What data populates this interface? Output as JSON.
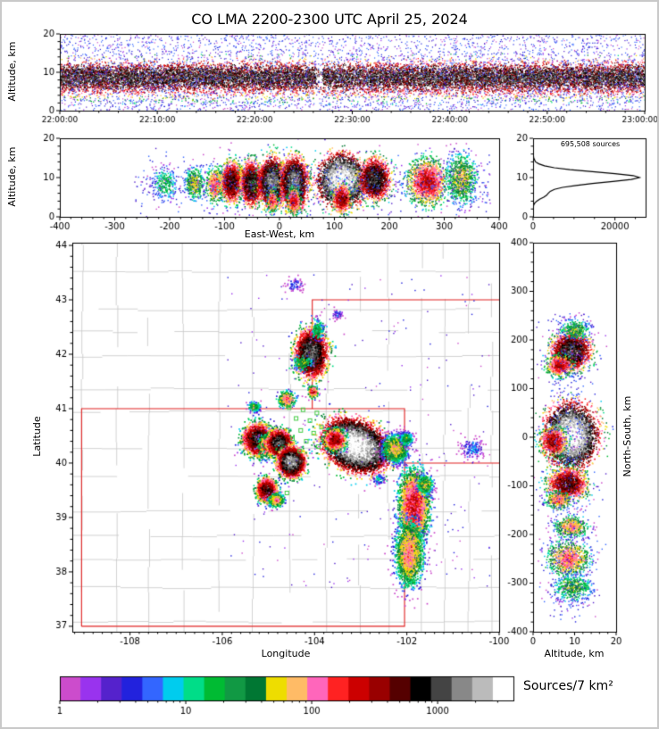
{
  "title": "CO LMA 2200-2300 UTC April 25, 2024",
  "labels": {
    "alt_axis": "Altitude, km",
    "ew_axis": "East-West, km",
    "ns_axis": "North-South, km",
    "lat_axis": "Latitude",
    "lon_axis": "Longitude",
    "colorbar": "Sources/7 km²",
    "sources_annotation": "695,508 sources"
  },
  "chart_data": {
    "type": "scatter",
    "description": "Lightning Mapping Array source density figure: time-height panel, east-west cross section, altitude histogram, plan view map, north-south cross section, log density colorbar.",
    "colormap": {
      "label": "Sources/7 km²",
      "log_max": 3.602,
      "colors": [
        "#cc4ccc",
        "#9933ee",
        "#5522cc",
        "#2222dd",
        "#3366ff",
        "#00ccee",
        "#00dd88",
        "#00bb33",
        "#119944",
        "#007733",
        "#eedd00",
        "#ffbb66",
        "#ff66bb",
        "#ff2222",
        "#cc0000",
        "#990000",
        "#550000",
        "#000000",
        "#444444",
        "#888888",
        "#bbbbbb",
        "#ffffff"
      ],
      "ticks": [
        {
          "label": "1",
          "value": 1
        },
        {
          "label": "10",
          "value": 10
        },
        {
          "label": "100",
          "value": 100
        },
        {
          "label": "1000",
          "value": 1000
        }
      ]
    },
    "panels": {
      "time_height": {
        "xlim_seconds": [
          0,
          3600
        ],
        "xticks_seconds": [
          0,
          600,
          1200,
          1800,
          2400,
          3000,
          3600
        ],
        "xtick_labels": [
          "22:00:00",
          "22:10:00",
          "22:20:00",
          "22:30:00",
          "22:40:00",
          "22:50:00",
          "23:00:00"
        ],
        "ylim": [
          0,
          20
        ],
        "yticks": [
          0,
          10,
          20
        ],
        "band": {
          "n": 16000,
          "peak": 1100,
          "color_mean": 8.8,
          "color_sigma": 2.2,
          "components": [
            {
              "weight": 0.75,
              "mean": 9.0,
              "sigma": 1.7
            },
            {
              "weight": 0.25,
              "mean": 7.2,
              "sigma": 2.6
            }
          ],
          "gap_seconds": [
            1570,
            1615
          ],
          "gap_drop": 0.8
        },
        "noise": {
          "n": 4200,
          "dmax": 6
        }
      },
      "ew_altitude": {
        "cluster_fields": "cx=east-west km, cy=altitude km",
        "xlim": [
          -400,
          400
        ],
        "xticks": [
          -400,
          -300,
          -200,
          -100,
          0,
          100,
          200,
          300,
          400
        ],
        "ylim": [
          0,
          20
        ],
        "yticks": [
          0,
          10,
          20
        ],
        "clusters": [
          {
            "cx": -210,
            "cy": 8.5,
            "sx": 12,
            "sy": 2.2,
            "peak": 25,
            "n": 260
          },
          {
            "cx": -155,
            "cy": 8.6,
            "sx": 9,
            "sy": 2.0,
            "peak": 70,
            "n": 380
          },
          {
            "cx": -118,
            "cy": 8.2,
            "sx": 8,
            "sy": 2.2,
            "peak": 180,
            "n": 520
          },
          {
            "cx": -88,
            "cy": 9.0,
            "sx": 9,
            "sy": 2.4,
            "peak": 900,
            "n": 1400
          },
          {
            "cx": -52,
            "cy": 8.6,
            "sx": 9,
            "sy": 2.6,
            "peak": 1300,
            "n": 1600
          },
          {
            "cx": -14,
            "cy": 9.0,
            "sx": 11,
            "sy": 2.8,
            "peak": 2400,
            "n": 2400
          },
          {
            "cx": 26,
            "cy": 8.6,
            "sx": 11,
            "sy": 3.0,
            "peak": 2400,
            "n": 2400
          },
          {
            "cx": 112,
            "cy": 9.4,
            "sx": 19,
            "sy": 2.8,
            "peak": 6500,
            "n": 3800
          },
          {
            "cx": 172,
            "cy": 9.8,
            "sx": 13,
            "sy": 2.4,
            "peak": 1500,
            "n": 1700
          },
          {
            "cx": 268,
            "cy": 9.0,
            "sx": 17,
            "sy": 2.8,
            "peak": 320,
            "n": 1500
          },
          {
            "cx": 330,
            "cy": 9.8,
            "sx": 14,
            "sy": 3.2,
            "peak": 70,
            "n": 800
          },
          {
            "cx": 25,
            "cy": 4.2,
            "sx": 6,
            "sy": 1.6,
            "peak": 300,
            "n": 420
          },
          {
            "cx": 112,
            "cy": 4.8,
            "sx": 8,
            "sy": 1.8,
            "peak": 500,
            "n": 520
          },
          {
            "cx": -14,
            "cy": 4.4,
            "sx": 5,
            "sy": 1.5,
            "peak": 200,
            "n": 280
          }
        ],
        "noise": {
          "n": 700,
          "u0": -265,
          "u1": 385,
          "g_mean": 8.5,
          "g_sigma": 3.5,
          "dmax": 6
        }
      },
      "alt_histogram": {
        "annotation": "695,508 sources",
        "xlim": [
          0,
          27500
        ],
        "xticks": [
          0,
          20000
        ],
        "xtick_labels": [
          "0",
          "20000"
        ],
        "xminors": [
          5000,
          10000,
          15000,
          25000
        ],
        "ylim": [
          0,
          20
        ],
        "yticks": [
          0,
          10,
          20
        ],
        "profile_alt_km": [
          0,
          2.5,
          3,
          3.5,
          4,
          4.5,
          5,
          5.5,
          6,
          6.5,
          7,
          7.5,
          8,
          8.5,
          9,
          9.5,
          10,
          10.5,
          11,
          11.5,
          12,
          12.5,
          13,
          13.5,
          14,
          15,
          16,
          17,
          20
        ],
        "profile_counts": [
          0,
          0,
          150,
          400,
          900,
          1600,
          2600,
          3300,
          3700,
          4200,
          5200,
          7200,
          10500,
          14500,
          19500,
          24000,
          26000,
          24500,
          20000,
          14500,
          9000,
          5200,
          2800,
          1400,
          600,
          150,
          30,
          0,
          0
        ]
      },
      "plan": {
        "cluster_fields": "cx=longitude deg, cy=latitude deg",
        "xlim": [
          -109.25,
          -100.0
        ],
        "xticks": [
          -108,
          -106,
          -104,
          -102,
          -100
        ],
        "ylim": [
          36.9,
          44.05
        ],
        "yticks": [
          37,
          38,
          39,
          40,
          41,
          42,
          43,
          44
        ],
        "state_border_color": "#e02020",
        "county_line_color": "#c8c8c8",
        "station_color": "#44cc44",
        "state_lines": [
          [
            [
              -109.05,
              37.0
            ],
            [
              -109.05,
              41.0
            ],
            [
              -102.05,
              41.0
            ],
            [
              -102.05,
              37.0
            ],
            [
              -109.05,
              37.0
            ]
          ],
          [
            [
              -104.05,
              41.0
            ],
            [
              -104.05,
              43.0
            ],
            [
              -100.0,
              43.0
            ]
          ],
          [
            [
              -102.05,
              40.0
            ],
            [
              -100.0,
              40.0
            ]
          ]
        ],
        "stations": [
          [
            -104.55,
            41.02
          ],
          [
            -104.25,
            40.98
          ],
          [
            -103.95,
            40.92
          ],
          [
            -104.4,
            40.82
          ],
          [
            -104.1,
            40.78
          ],
          [
            -103.85,
            40.66
          ],
          [
            -104.3,
            40.6
          ],
          [
            -104.02,
            40.55
          ],
          [
            -104.48,
            40.45
          ],
          [
            -104.18,
            40.4
          ],
          [
            -103.92,
            40.3
          ],
          [
            -104.32,
            40.22
          ],
          [
            -104.6,
            39.45
          ]
        ],
        "clusters": [
          {
            "cx": -104.08,
            "cy": 42.02,
            "sx": 0.16,
            "sy": 0.2,
            "peak": 1800,
            "n": 2600
          },
          {
            "cx": -103.95,
            "cy": 42.45,
            "sx": 0.07,
            "sy": 0.1,
            "peak": 30,
            "n": 160
          },
          {
            "cx": -104.28,
            "cy": 41.85,
            "sx": 0.1,
            "sy": 0.07,
            "peak": 50,
            "n": 180
          },
          {
            "cx": -104.05,
            "cy": 41.32,
            "sx": 0.05,
            "sy": 0.05,
            "peak": 280,
            "n": 240
          },
          {
            "cx": -104.62,
            "cy": 41.18,
            "sx": 0.09,
            "sy": 0.07,
            "peak": 160,
            "n": 320
          },
          {
            "cx": -105.32,
            "cy": 41.05,
            "sx": 0.07,
            "sy": 0.05,
            "peak": 35,
            "n": 140
          },
          {
            "cx": -105.25,
            "cy": 40.45,
            "sx": 0.14,
            "sy": 0.13,
            "peak": 1300,
            "n": 2400
          },
          {
            "cx": -105.02,
            "cy": 40.33,
            "sx": 0.09,
            "sy": 0.09,
            "peak": 350,
            "n": 800
          },
          {
            "cx": -104.78,
            "cy": 40.38,
            "sx": 0.12,
            "sy": 0.11,
            "peak": 1600,
            "n": 2200
          },
          {
            "cx": -104.52,
            "cy": 40.03,
            "sx": 0.13,
            "sy": 0.12,
            "peak": 2600,
            "n": 2700
          },
          {
            "cx": -105.05,
            "cy": 39.52,
            "sx": 0.1,
            "sy": 0.1,
            "peak": 900,
            "n": 1500
          },
          {
            "cx": -104.84,
            "cy": 39.33,
            "sx": 0.08,
            "sy": 0.06,
            "peak": 120,
            "n": 400
          },
          {
            "cx": -103.12,
            "cy": 40.33,
            "sx": 0.3,
            "sy": 0.19,
            "peak": 6500,
            "n": 8500,
            "rot": -18
          },
          {
            "cx": -103.58,
            "cy": 40.44,
            "sx": 0.11,
            "sy": 0.09,
            "peak": 500,
            "n": 900
          },
          {
            "cx": -102.26,
            "cy": 40.28,
            "sx": 0.13,
            "sy": 0.12,
            "peak": 90,
            "n": 1400
          },
          {
            "cx": -102.02,
            "cy": 40.46,
            "sx": 0.07,
            "sy": 0.06,
            "peak": 40,
            "n": 280
          },
          {
            "cx": -100.6,
            "cy": 40.28,
            "sx": 0.13,
            "sy": 0.1,
            "peak": 7,
            "n": 150
          },
          {
            "cx": -101.86,
            "cy": 39.22,
            "sx": 0.15,
            "sy": 0.3,
            "peak": 280,
            "n": 3000
          },
          {
            "cx": -101.62,
            "cy": 39.62,
            "sx": 0.09,
            "sy": 0.09,
            "peak": 60,
            "n": 360
          },
          {
            "cx": -101.96,
            "cy": 38.34,
            "sx": 0.14,
            "sy": 0.28,
            "peak": 130,
            "n": 2100
          },
          {
            "cx": -104.45,
            "cy": 43.28,
            "sx": 0.1,
            "sy": 0.07,
            "peak": 5,
            "n": 70
          },
          {
            "cx": -103.52,
            "cy": 42.75,
            "sx": 0.06,
            "sy": 0.05,
            "peak": 5,
            "n": 45
          },
          {
            "cx": -102.62,
            "cy": 39.72,
            "sx": 0.07,
            "sy": 0.05,
            "peak": 12,
            "n": 80
          }
        ],
        "noise": {
          "n": 260,
          "x0": -105.9,
          "x1": -100.2,
          "y0": 37.7,
          "y1": 43.5,
          "dmax": 3
        }
      },
      "ns_altitude": {
        "cluster_fields": "cx=altitude km, cy=north-south km",
        "xlim": [
          0,
          20
        ],
        "xticks": [
          0,
          10,
          20
        ],
        "ylim": [
          -400,
          400
        ],
        "yticks": [
          400,
          300,
          200,
          100,
          0,
          -100,
          -200,
          -300,
          -400
        ],
        "clusters": [
          {
            "cx": 9.0,
            "cy": 178,
            "sx": 2.2,
            "sy": 17,
            "peak": 1500,
            "n": 2000
          },
          {
            "cx": 6.3,
            "cy": 148,
            "sx": 1.5,
            "sy": 10,
            "peak": 380,
            "n": 600
          },
          {
            "cx": 10.0,
            "cy": 222,
            "sx": 1.8,
            "sy": 11,
            "peak": 45,
            "n": 300
          },
          {
            "cx": 9.0,
            "cy": 4,
            "sx": 2.7,
            "sy": 28,
            "peak": 6500,
            "n": 4600
          },
          {
            "cx": 4.8,
            "cy": -8,
            "sx": 1.6,
            "sy": 14,
            "peak": 450,
            "n": 650
          },
          {
            "cx": 8.2,
            "cy": -95,
            "sx": 2.2,
            "sy": 15,
            "peak": 800,
            "n": 1400
          },
          {
            "cx": 6.0,
            "cy": -128,
            "sx": 1.5,
            "sy": 9,
            "peak": 160,
            "n": 380
          },
          {
            "cx": 9.0,
            "cy": -183,
            "sx": 2.0,
            "sy": 11,
            "peak": 110,
            "n": 480
          },
          {
            "cx": 8.4,
            "cy": -248,
            "sx": 2.4,
            "sy": 17,
            "peak": 160,
            "n": 850
          },
          {
            "cx": 9.4,
            "cy": -308,
            "sx": 2.4,
            "sy": 14,
            "peak": 45,
            "n": 480
          }
        ],
        "noise": {
          "n": 600,
          "u0": -380,
          "u1": 255,
          "g_mean": 8.6,
          "g_sigma": 3.2,
          "dmax": 6
        }
      }
    }
  }
}
